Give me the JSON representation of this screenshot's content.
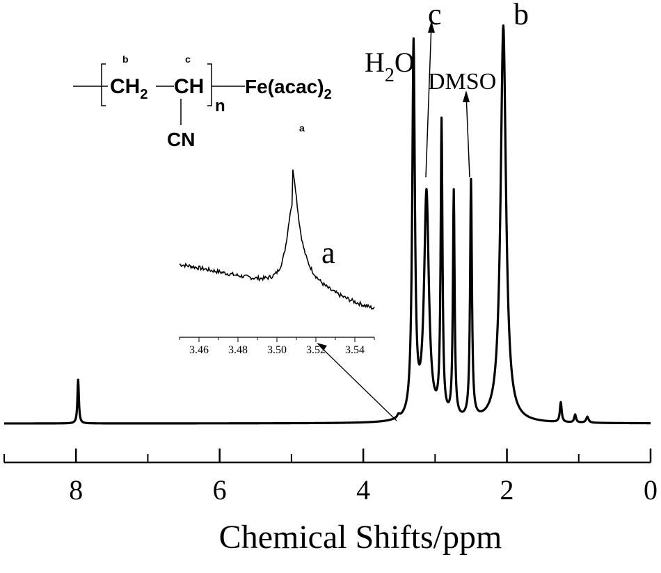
{
  "chart_data": {
    "type": "line",
    "xlabel": "Chemical Shifts/ppm",
    "ylabel": "",
    "xlim": [
      9.0,
      0.0
    ],
    "ylim": [
      0,
      1
    ],
    "x_reversed": true,
    "x_ticks": [
      "8",
      "6",
      "4",
      "2",
      "0"
    ],
    "x_tick_values": [
      8,
      6,
      4,
      2,
      0
    ],
    "colors": {
      "line": "#000000",
      "background": "#ffffff"
    },
    "grid": false,
    "peaks": [
      {
        "shift": 7.97,
        "height": 0.11,
        "width": 0.012
      },
      {
        "shift": 3.51,
        "height": 0.008,
        "width": 0.02
      },
      {
        "shift": 3.3,
        "height": 0.94,
        "width": 0.022
      },
      {
        "shift": 3.12,
        "height": 0.57,
        "width": 0.04
      },
      {
        "shift": 2.91,
        "height": 0.74,
        "width": 0.015
      },
      {
        "shift": 2.74,
        "height": 0.57,
        "width": 0.014
      },
      {
        "shift": 2.5,
        "height": 0.6,
        "width": 0.015
      },
      {
        "shift": 2.05,
        "height": 1.0,
        "width": 0.045
      },
      {
        "shift": 1.25,
        "height": 0.05,
        "width": 0.015
      },
      {
        "shift": 1.05,
        "height": 0.02,
        "width": 0.015
      },
      {
        "shift": 0.88,
        "height": 0.015,
        "width": 0.02
      }
    ],
    "peak_labels": [
      {
        "text": "H",
        "sub": "2",
        "tail": "O",
        "shift": 3.3,
        "kind": "water"
      },
      {
        "text": "c",
        "shift": 3.12,
        "kind": "arrow"
      },
      {
        "text": "DMSO",
        "shift": 2.5,
        "kind": "arrow"
      },
      {
        "text": "b",
        "shift": 2.05,
        "kind": "plain"
      }
    ],
    "inset": {
      "type": "line",
      "label": "a",
      "points_to_shift": 3.51,
      "xlim": [
        3.45,
        3.55
      ],
      "x_ticks": [
        "3.46",
        "3.48",
        "3.50",
        "3.52",
        "3.54"
      ],
      "x_tick_values": [
        3.46,
        3.48,
        3.5,
        3.52,
        3.54
      ],
      "peak_center": 3.508,
      "baseline_left": 0.35,
      "baseline_right": 0.02
    }
  },
  "structure": {
    "ch2": "CH",
    "ch2_sub": "2",
    "ch": "CH",
    "n": "n",
    "end_group": "Fe(acac)",
    "end_group_sub": "2",
    "side_group": "CN",
    "label_b": "b",
    "label_c": "c",
    "label_a": "a"
  }
}
